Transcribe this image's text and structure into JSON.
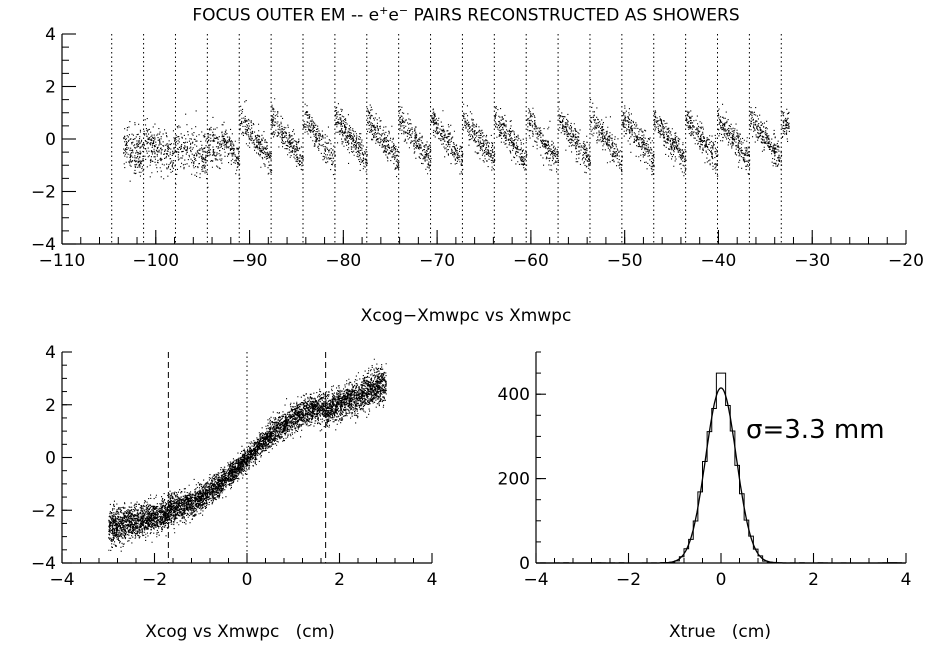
{
  "title_prefix": "FOCUS OUTER EM -- e",
  "title_sup1": "+",
  "title_mid": "e",
  "title_sup2": "−",
  "title_suffix": " PAIRS RECONSTRUCTED AS SHOWERS",
  "mid_caption": "Xcog−Xmwpc vs Xmwpc",
  "bottom_left_xlabel": "Xcog vs Xmwpc   (cm)",
  "bottom_right_xlabel": "Xtrue   (cm)",
  "chart_data": [
    {
      "type": "scatter",
      "name": "top-scatter",
      "xlim": [
        -110,
        -20
      ],
      "ylim": [
        -4,
        4
      ],
      "xticks": [
        -110,
        -100,
        -90,
        -80,
        -70,
        -60,
        -50,
        -40,
        -30,
        -20
      ],
      "xtick_labels": [
        "−110",
        "−100",
        "−90",
        "−80",
        "−70",
        "−60",
        "−50",
        "−40",
        "−30",
        "−20"
      ],
      "yticks": [
        -4,
        -2,
        0,
        2,
        4
      ],
      "ytick_labels": [
        "−4",
        "−2",
        "0",
        "2",
        "4"
      ],
      "x_range_data": [
        -103.5,
        -32.5
      ],
      "oscillation_period_cm": 3.4,
      "oscillation_amplitude": 0.8,
      "vertical_dotted_lines": [
        -104.7,
        -101.3,
        -97.9,
        -94.5,
        -91.1,
        -87.7,
        -84.3,
        -80.9,
        -77.5,
        -74.1,
        -70.7,
        -67.3,
        -63.9,
        -60.5,
        -57.1,
        -53.7,
        -50.3,
        -46.9,
        -43.5,
        -40.1,
        -36.7,
        -33.3
      ],
      "grid": false
    },
    {
      "type": "scatter",
      "name": "bottom-left-scatter",
      "xlim": [
        -4,
        4
      ],
      "ylim": [
        -4,
        4
      ],
      "xticks": [
        -4,
        -2,
        0,
        2,
        4
      ],
      "xtick_labels": [
        "−4",
        "−2",
        "0",
        "2",
        "4"
      ],
      "yticks": [
        -4,
        -2,
        0,
        2,
        4
      ],
      "ytick_labels": [
        "−4",
        "−2",
        "0",
        "2",
        "4"
      ],
      "x_range_data": [
        -3.0,
        3.0
      ],
      "dashed_lines": [
        -1.7,
        1.7
      ],
      "dotted_lines": [
        0
      ],
      "grid": false
    },
    {
      "type": "histogram",
      "name": "bottom-right-histogram",
      "xlim": [
        -4,
        4
      ],
      "ylim": [
        0,
        500
      ],
      "xticks": [
        -4,
        -2,
        0,
        2,
        4
      ],
      "xtick_labels": [
        "−4",
        "−2",
        "0",
        "2",
        "4"
      ],
      "yticks": [
        0,
        200,
        400
      ],
      "ytick_labels": [
        "0",
        "200",
        "400"
      ],
      "bin_width": 0.1,
      "peak_counts": 450,
      "fit": {
        "type": "gaussian",
        "mean": 0,
        "sigma": 0.33,
        "amplitude": 415
      },
      "annotation": "σ=3.3 mm",
      "grid": false
    }
  ]
}
